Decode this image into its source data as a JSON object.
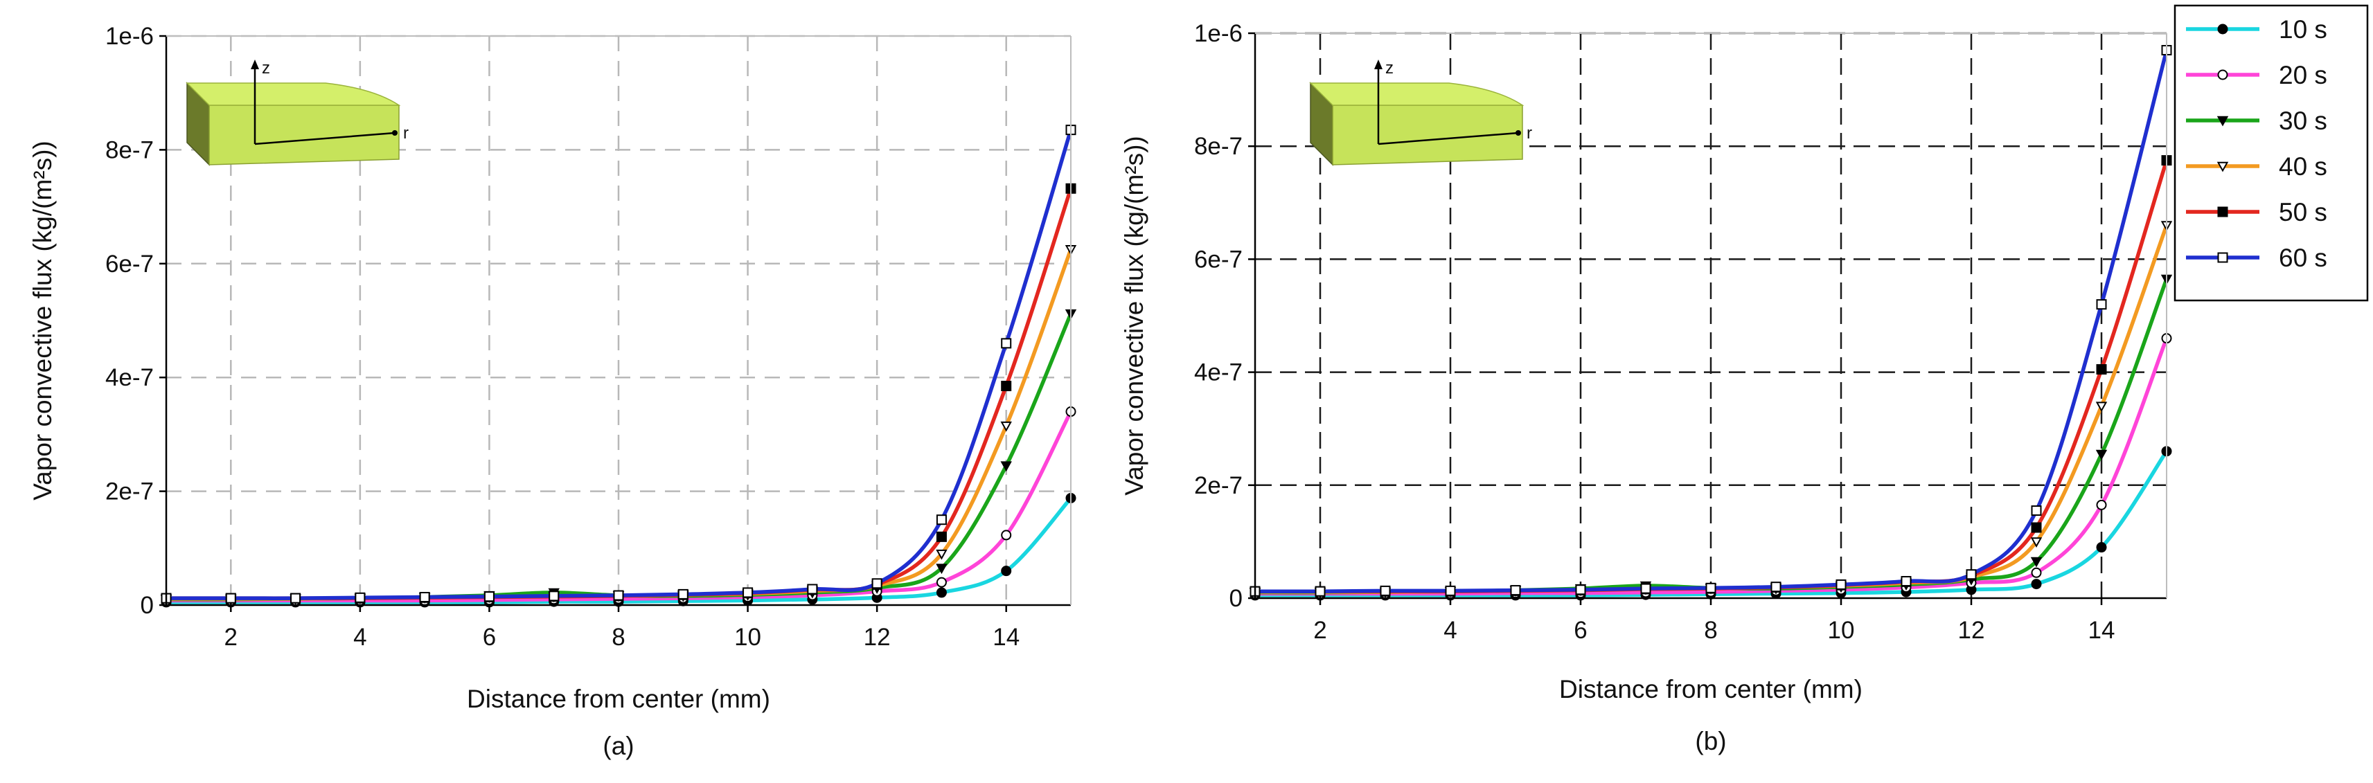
{
  "figure": {
    "panels": [
      {
        "caption": "(a)"
      },
      {
        "caption": "(b)"
      }
    ],
    "inset": {
      "z_label": "z",
      "r_label": "r",
      "face_color": "#d4ef6a",
      "side_color": "#6b7a2a"
    },
    "series_styles": [
      {
        "color": "#19d6e0",
        "marker": "filled-circle"
      },
      {
        "color": "#ff44d8",
        "marker": "open-circle"
      },
      {
        "color": "#1aa51a",
        "marker": "filled-triangle-down"
      },
      {
        "color": "#f39a21",
        "marker": "open-triangle-down"
      },
      {
        "color": "#e3271f",
        "marker": "filled-square"
      },
      {
        "color": "#1f2fcf",
        "marker": "open-square"
      }
    ]
  },
  "chart_data": [
    {
      "type": "line",
      "caption": "(a)",
      "xlabel": "Distance from center (mm)",
      "ylabel": "Vapor convective flux (kg/(m²s))",
      "xlim": [
        1,
        15
      ],
      "ylim": [
        0,
        1e-06
      ],
      "xticks": [
        2,
        4,
        6,
        8,
        10,
        12,
        14
      ],
      "yticks": [
        0,
        2e-07,
        4e-07,
        6e-07,
        8e-07,
        1e-06
      ],
      "ytick_labels": [
        "0",
        "2e-7",
        "4e-7",
        "6e-7",
        "8e-7",
        "1e-6"
      ],
      "grid": true,
      "grid_style": "dashed-light",
      "x": [
        1,
        2,
        3,
        4,
        5,
        6,
        7,
        8,
        9,
        10,
        11,
        12,
        13,
        14,
        15
      ],
      "series": [
        {
          "name": "10 s",
          "values": [
            5e-09,
            5e-09,
            5e-09,
            5e-09,
            5e-09,
            5e-09,
            6e-09,
            6e-09,
            7e-09,
            8e-09,
            1e-08,
            1.3e-08,
            2.2e-08,
            6e-08,
            1.88e-07
          ]
        },
        {
          "name": "20 s",
          "values": [
            8e-09,
            8e-09,
            8e-09,
            8e-09,
            8e-09,
            9e-09,
            1e-08,
            1.1e-08,
            1.2e-08,
            1.4e-08,
            1.7e-08,
            2.4e-08,
            4e-08,
            1.23e-07,
            3.4e-07
          ]
        },
        {
          "name": "30 s",
          "values": [
            1e-08,
            1e-08,
            1.1e-08,
            1.2e-08,
            1.4e-08,
            1.7e-08,
            2.2e-08,
            1.7e-08,
            1.6e-08,
            1.8e-08,
            2.2e-08,
            3e-08,
            6.5e-08,
            2.45e-07,
            5.12e-07
          ]
        },
        {
          "name": "40 s",
          "values": [
            1.1e-08,
            1.1e-08,
            1.1e-08,
            1.2e-08,
            1.3e-08,
            1.4e-08,
            1.5e-08,
            1.6e-08,
            1.8e-08,
            2e-08,
            2.5e-08,
            3.4e-08,
            9e-08,
            3.15e-07,
            6.25e-07
          ]
        },
        {
          "name": "50 s",
          "values": [
            1.2e-08,
            1.2e-08,
            1.2e-08,
            1.2e-08,
            1.3e-08,
            1.4e-08,
            1.5e-08,
            1.6e-08,
            1.8e-08,
            2.1e-08,
            2.7e-08,
            3.6e-08,
            1.2e-07,
            3.85e-07,
            7.32e-07
          ]
        },
        {
          "name": "60 s",
          "values": [
            1.2e-08,
            1.2e-08,
            1.2e-08,
            1.3e-08,
            1.4e-08,
            1.5e-08,
            1.6e-08,
            1.7e-08,
            1.9e-08,
            2.2e-08,
            2.8e-08,
            3.8e-08,
            1.5e-07,
            4.6e-07,
            8.35e-07
          ]
        }
      ]
    },
    {
      "type": "line",
      "caption": "(b)",
      "xlabel": "Distance from center (mm)",
      "ylabel": "Vapor convective flux (kg/(m²s))",
      "xlim": [
        1,
        15
      ],
      "ylim": [
        0,
        1e-06
      ],
      "xticks": [
        2,
        4,
        6,
        8,
        10,
        12,
        14
      ],
      "yticks": [
        0,
        2e-07,
        4e-07,
        6e-07,
        8e-07,
        1e-06
      ],
      "ytick_labels": [
        "0",
        "2e-7",
        "4e-7",
        "6e-7",
        "8e-7",
        "1e-6"
      ],
      "grid": true,
      "grid_style": "dashed-dark",
      "legend_position": "top-right, outside plot",
      "x": [
        1,
        2,
        3,
        4,
        5,
        6,
        7,
        8,
        9,
        10,
        11,
        12,
        13,
        14,
        15
      ],
      "series": [
        {
          "name": "10 s",
          "values": [
            5e-09,
            5e-09,
            5e-09,
            5e-09,
            5e-09,
            5e-09,
            6e-09,
            7e-09,
            8e-09,
            9e-09,
            1.1e-08,
            1.5e-08,
            2.5e-08,
            9e-08,
            2.6e-07
          ]
        },
        {
          "name": "20 s",
          "values": [
            8e-09,
            8e-09,
            8e-09,
            8e-09,
            9e-09,
            9e-09,
            1e-08,
            1.1e-08,
            1.3e-08,
            1.5e-08,
            1.9e-08,
            2.7e-08,
            4.5e-08,
            1.65e-07,
            4.6e-07
          ]
        },
        {
          "name": "30 s",
          "values": [
            1e-08,
            1e-08,
            1.1e-08,
            1.2e-08,
            1.4e-08,
            1.7e-08,
            2.2e-08,
            1.8e-08,
            1.7e-08,
            2e-08,
            2.4e-08,
            3.3e-08,
            6.5e-08,
            2.55e-07,
            5.65e-07
          ]
        },
        {
          "name": "40 s",
          "values": [
            1.1e-08,
            1.1e-08,
            1.1e-08,
            1.2e-08,
            1.3e-08,
            1.4e-08,
            1.6e-08,
            1.7e-08,
            1.9e-08,
            2.2e-08,
            2.7e-08,
            3.7e-08,
            1e-07,
            3.4e-07,
            6.6e-07
          ]
        },
        {
          "name": "50 s",
          "values": [
            1.2e-08,
            1.2e-08,
            1.2e-08,
            1.2e-08,
            1.3e-08,
            1.4e-08,
            1.6e-08,
            1.7e-08,
            1.9e-08,
            2.3e-08,
            2.9e-08,
            4e-08,
            1.25e-07,
            4.05e-07,
            7.75e-07
          ]
        },
        {
          "name": "60 s",
          "values": [
            1.2e-08,
            1.2e-08,
            1.3e-08,
            1.3e-08,
            1.4e-08,
            1.5e-08,
            1.7e-08,
            1.8e-08,
            2e-08,
            2.4e-08,
            3e-08,
            4.2e-08,
            1.55e-07,
            5.2e-07,
            9.7e-07
          ]
        }
      ]
    }
  ]
}
